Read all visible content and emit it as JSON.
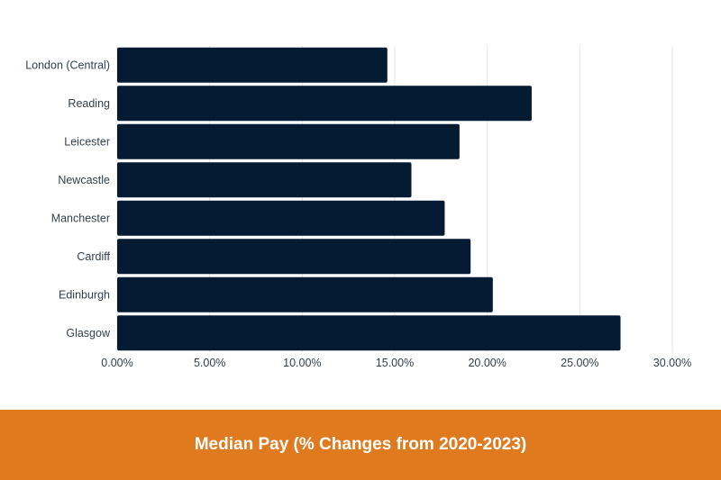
{
  "colors": {
    "bar": "#051a33",
    "footer_background": "#e07a1e",
    "footer_text": "#ffffff",
    "grid": "#e3e6ea",
    "label_text": "#333f4f"
  },
  "footer": {
    "title": "Median Pay (% Changes from 2020-2023)"
  },
  "chart_data": {
    "type": "bar",
    "orientation": "horizontal",
    "title": "Median Pay (% Changes from 2020-2023)",
    "categories": [
      "London (Central)",
      "Reading",
      "Leicester",
      "Newcastle",
      "Manchester",
      "Cardiff",
      "Edinburgh",
      "Glasgow"
    ],
    "values": [
      14.6,
      22.4,
      18.5,
      15.9,
      17.7,
      19.1,
      20.3,
      27.2
    ],
    "value_unit": "%",
    "xlim": [
      0,
      30
    ],
    "xticks": [
      0,
      5,
      10,
      15,
      20,
      25,
      30
    ],
    "xtick_labels": [
      "0.00%",
      "5.00%",
      "10.00%",
      "15.00%",
      "20.00%",
      "25.00%",
      "30.00%"
    ],
    "xlabel": "",
    "ylabel": "",
    "grid": "vertical",
    "legend": "none"
  }
}
